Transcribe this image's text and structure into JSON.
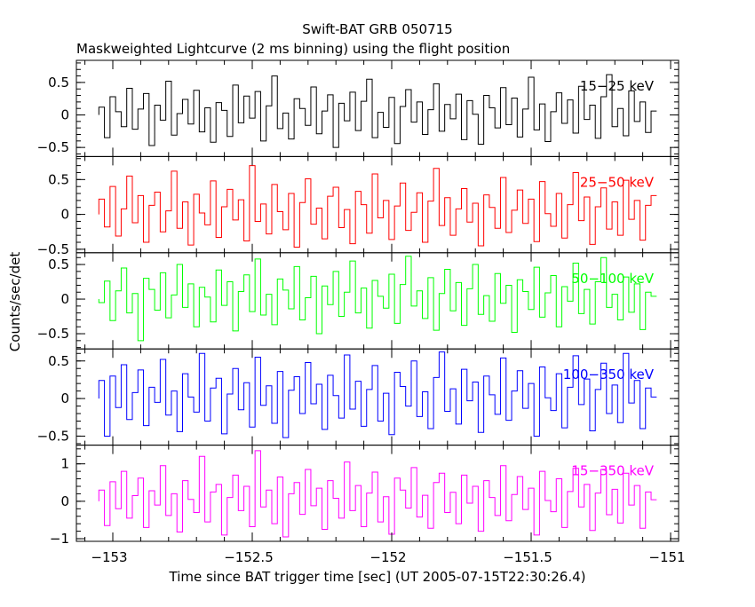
{
  "chart_data": {
    "type": "line",
    "title": "Swift-BAT GRB 050715",
    "subtitle": "Maskweighted Lightcurve (2 ms binning) using the flight position",
    "xlabel": "Time since BAT trigger time [sec] (UT 2005-07-15T22:30:26.4)",
    "ylabel": "Counts/sec/det",
    "xlim": [
      -153.1,
      -151
    ],
    "x_start": -153.05,
    "x_end": -151.05,
    "xticks": [
      -153,
      -152.5,
      -152,
      -151.5,
      -151
    ],
    "xtick_labels": [
      "−153",
      "−152.5",
      "−152",
      "−151.5",
      "−151"
    ],
    "grid": false,
    "panels": [
      {
        "name": "15−25 keV",
        "color": "#000000",
        "ylim": [
          -0.64,
          0.84
        ],
        "yticks": [
          -0.5,
          0,
          0.5
        ],
        "ytick_labels": [
          "−0.5",
          "0",
          "0.5"
        ],
        "values": [
          0.12,
          -0.35,
          0.28,
          0.05,
          -0.18,
          0.41,
          -0.22,
          0.09,
          0.33,
          -0.47,
          0.15,
          -0.08,
          0.52,
          -0.31,
          0.02,
          0.24,
          -0.14,
          0.38,
          -0.26,
          0.11,
          -0.42,
          0.19,
          0.07,
          -0.33,
          0.46,
          -0.12,
          0.29,
          -0.05,
          0.36,
          -0.4,
          0.14,
          0.6,
          -0.21,
          0.03,
          -0.37,
          0.25,
          0.1,
          -0.16,
          0.43,
          -0.29,
          0.06,
          0.31,
          -0.5,
          0.18,
          -0.09,
          0.35,
          -0.24,
          0.21,
          0.55,
          -0.35,
          0.04,
          -0.19,
          0.27,
          -0.44,
          0.13,
          0.39,
          -0.11,
          0.2,
          -0.3,
          0.08,
          0.48,
          -0.25,
          0.16,
          -0.06,
          0.32,
          -0.38,
          0.22,
          0.01,
          -0.45,
          0.3,
          0.11,
          -0.2,
          0.42,
          -0.15,
          0.26,
          -0.34,
          0.09,
          0.58,
          -0.23,
          0.17,
          -0.41,
          0.05,
          0.34,
          -0.13,
          0.23,
          -0.28,
          0.44,
          -0.07,
          0.15,
          -0.36,
          0.28,
          0.62,
          -0.18,
          0.1,
          -0.32,
          0.37,
          -0.1,
          0.2,
          -0.27,
          0.06
        ]
      },
      {
        "name": "25−50 keV",
        "color": "#ff0000",
        "ylim": [
          -0.55,
          0.83
        ],
        "yticks": [
          -0.5,
          0,
          0.5
        ],
        "ytick_labels": [
          "−0.5",
          "0",
          "0.5"
        ],
        "values": [
          0.22,
          -0.18,
          0.4,
          -0.31,
          0.08,
          0.55,
          -0.12,
          0.27,
          -0.4,
          0.13,
          0.32,
          -0.25,
          0.05,
          0.62,
          -0.2,
          0.18,
          -0.44,
          0.29,
          0.02,
          -0.15,
          0.48,
          -0.33,
          0.11,
          0.36,
          -0.08,
          0.21,
          -0.38,
          0.7,
          -0.1,
          0.15,
          -0.28,
          0.43,
          0.04,
          -0.22,
          0.3,
          -0.47,
          0.17,
          0.51,
          -0.14,
          0.09,
          -0.35,
          0.26,
          0.39,
          -0.19,
          0.07,
          -0.42,
          0.33,
          0.14,
          -0.27,
          0.58,
          -0.05,
          0.2,
          -0.36,
          0.12,
          0.45,
          -0.23,
          0.03,
          0.31,
          -0.4,
          0.19,
          0.66,
          -0.16,
          0.24,
          -0.3,
          0.08,
          0.37,
          -0.11,
          0.16,
          -0.45,
          0.28,
          0.1,
          -0.2,
          0.53,
          -0.26,
          0.06,
          0.35,
          -0.13,
          0.22,
          -0.39,
          0.47,
          0.01,
          -0.17,
          0.3,
          -0.34,
          0.14,
          0.6,
          -0.09,
          0.25,
          -0.43,
          0.11,
          0.38,
          -0.21,
          0.18,
          -0.3,
          0.49,
          -0.07,
          0.2,
          -0.37,
          0.13,
          0.27
        ]
      },
      {
        "name": "50−100 keV",
        "color": "#00ff00",
        "ylim": [
          -0.72,
          0.67
        ],
        "yticks": [
          -0.5,
          0,
          0.5
        ],
        "ytick_labels": [
          "−0.5",
          "0",
          "0.5"
        ],
        "values": [
          -0.05,
          0.26,
          -0.31,
          0.12,
          0.45,
          -0.2,
          0.08,
          -0.6,
          0.3,
          0.14,
          -0.16,
          0.38,
          -0.27,
          0.06,
          0.5,
          -0.12,
          0.22,
          -0.4,
          0.17,
          0.03,
          -0.33,
          0.42,
          -0.09,
          0.25,
          -0.46,
          0.11,
          0.35,
          -0.18,
          0.58,
          -0.23,
          0.07,
          -0.37,
          0.29,
          0.13,
          -0.14,
          0.47,
          -0.3,
          0.02,
          0.33,
          -0.5,
          0.19,
          -0.08,
          0.4,
          -0.25,
          0.1,
          0.55,
          -0.2,
          0.16,
          -0.42,
          0.27,
          0.04,
          -0.13,
          0.36,
          -0.35,
          0.21,
          0.62,
          -0.1,
          0.12,
          -0.28,
          0.31,
          -0.45,
          0.08,
          0.43,
          -0.17,
          0.24,
          -0.38,
          0.15,
          0.5,
          -0.22,
          0.05,
          -0.32,
          0.37,
          -0.06,
          0.2,
          -0.48,
          0.28,
          0.11,
          -0.15,
          0.46,
          -0.26,
          0.09,
          0.34,
          -0.4,
          0.18,
          -0.03,
          0.52,
          -0.21,
          0.14,
          -0.36,
          0.25,
          0.6,
          -0.12,
          0.07,
          -0.3,
          0.32,
          -0.19,
          0.22,
          -0.44,
          0.1,
          0.04
        ]
      },
      {
        "name": "100−350 keV",
        "color": "#0000ff",
        "ylim": [
          -0.62,
          0.66
        ],
        "yticks": [
          -0.5,
          0,
          0.5
        ],
        "ytick_labels": [
          "−0.5",
          "0",
          "0.5"
        ],
        "values": [
          0.24,
          -0.5,
          0.3,
          -0.12,
          0.45,
          -0.28,
          0.08,
          0.38,
          -0.36,
          0.15,
          -0.05,
          0.52,
          -0.22,
          0.1,
          -0.44,
          0.33,
          0.02,
          -0.18,
          0.6,
          -0.3,
          0.14,
          0.27,
          -0.47,
          0.06,
          0.4,
          -0.15,
          0.21,
          -0.38,
          0.55,
          -0.09,
          0.17,
          -0.33,
          0.36,
          -0.52,
          0.11,
          0.29,
          -0.2,
          0.48,
          -0.07,
          0.19,
          -0.41,
          0.31,
          0.04,
          -0.26,
          0.58,
          -0.14,
          0.23,
          -0.37,
          0.12,
          0.44,
          -0.3,
          0.07,
          -0.48,
          0.35,
          0.16,
          -0.1,
          0.5,
          -0.24,
          0.09,
          -0.4,
          0.28,
          0.62,
          -0.17,
          0.13,
          -0.34,
          0.39,
          -0.03,
          0.22,
          -0.45,
          0.3,
          0.05,
          -0.21,
          0.54,
          -0.29,
          0.1,
          0.37,
          -0.13,
          0.2,
          -0.5,
          0.42,
          0.01,
          -0.16,
          0.33,
          -0.39,
          0.15,
          0.57,
          -0.08,
          0.26,
          -0.43,
          0.12,
          0.47,
          -0.2,
          0.18,
          -0.32,
          0.6,
          -0.06,
          0.24,
          -0.4,
          0.14,
          0.02
        ]
      },
      {
        "name": "15−350 keV",
        "color": "#ff00ff",
        "ylim": [
          -1.07,
          1.5
        ],
        "yticks": [
          -1,
          0,
          1
        ],
        "ytick_labels": [
          "−1",
          "0",
          "1"
        ],
        "values": [
          0.3,
          -0.65,
          0.52,
          -0.2,
          0.8,
          -0.45,
          0.15,
          0.62,
          -0.7,
          0.28,
          -0.1,
          0.95,
          -0.38,
          0.2,
          -0.82,
          0.55,
          0.05,
          -0.3,
          1.2,
          -0.55,
          0.25,
          0.45,
          -0.9,
          0.1,
          0.7,
          -0.25,
          0.4,
          -0.68,
          1.35,
          -0.15,
          0.3,
          -0.6,
          0.65,
          -0.95,
          0.2,
          0.5,
          -0.35,
          0.85,
          -0.12,
          0.35,
          -0.75,
          0.55,
          0.08,
          -0.45,
          1.05,
          -0.25,
          0.42,
          -0.68,
          0.22,
          0.78,
          -0.55,
          0.12,
          -0.88,
          0.62,
          0.3,
          -0.18,
          0.9,
          -0.42,
          0.16,
          -0.72,
          0.5,
          0.75,
          -0.3,
          0.24,
          -0.6,
          0.7,
          -0.05,
          0.4,
          -0.8,
          0.55,
          0.1,
          -0.38,
          0.95,
          -0.52,
          0.18,
          0.66,
          -0.22,
          0.35,
          -0.9,
          0.8,
          0.02,
          -0.28,
          0.6,
          -0.7,
          0.26,
          0.88,
          -0.15,
          0.45,
          -0.78,
          0.22,
          0.85,
          -0.36,
          0.32,
          -0.58,
          0.75,
          -0.1,
          0.42,
          -0.72,
          0.25,
          0.04
        ]
      }
    ]
  }
}
